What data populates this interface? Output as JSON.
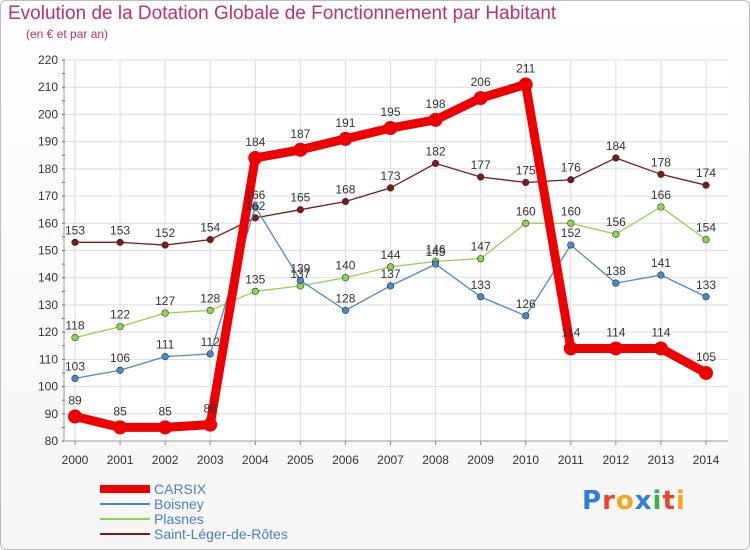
{
  "chart_data": {
    "type": "line",
    "title": "Evolution de la Dotation Globale de Fonctionnement par Habitant",
    "subtitle": "(en € et par an)",
    "categories": [
      "2000",
      "2001",
      "2002",
      "2003",
      "2004",
      "2005",
      "2006",
      "2007",
      "2008",
      "2009",
      "2010",
      "2011",
      "2012",
      "2013",
      "2014"
    ],
    "ylim": [
      80,
      220
    ],
    "yticks": [
      80,
      90,
      100,
      110,
      120,
      130,
      140,
      150,
      160,
      170,
      180,
      190,
      200,
      210,
      220
    ],
    "grid": true,
    "legend_position": "bottom-left",
    "series": [
      {
        "name": "Saint-Léger-de-Rôtes",
        "color": "#7a1a1a",
        "values": [
          153,
          153,
          152,
          154,
          162,
          165,
          168,
          173,
          182,
          177,
          175,
          176,
          184,
          178,
          174
        ]
      },
      {
        "name": "Plasnes",
        "color": "#8fd44f",
        "values": [
          118,
          122,
          127,
          128,
          135,
          137,
          140,
          144,
          146,
          147,
          160,
          160,
          156,
          166,
          154
        ]
      },
      {
        "name": "Boisney",
        "color": "#4a8ac9",
        "values": [
          103,
          106,
          111,
          112,
          166,
          139,
          128,
          137,
          145,
          133,
          126,
          152,
          138,
          141,
          133
        ]
      },
      {
        "name": "CARSIX",
        "color": "#ee0000",
        "values": [
          89,
          85,
          85,
          86,
          184,
          187,
          191,
          195,
          198,
          206,
          211,
          114,
          114,
          114,
          105
        ]
      }
    ],
    "legend_order": [
      "CARSIX",
      "Boisney",
      "Plasnes",
      "Saint-Léger-de-Rôtes"
    ]
  },
  "logo": {
    "text": "Proxiti"
  }
}
